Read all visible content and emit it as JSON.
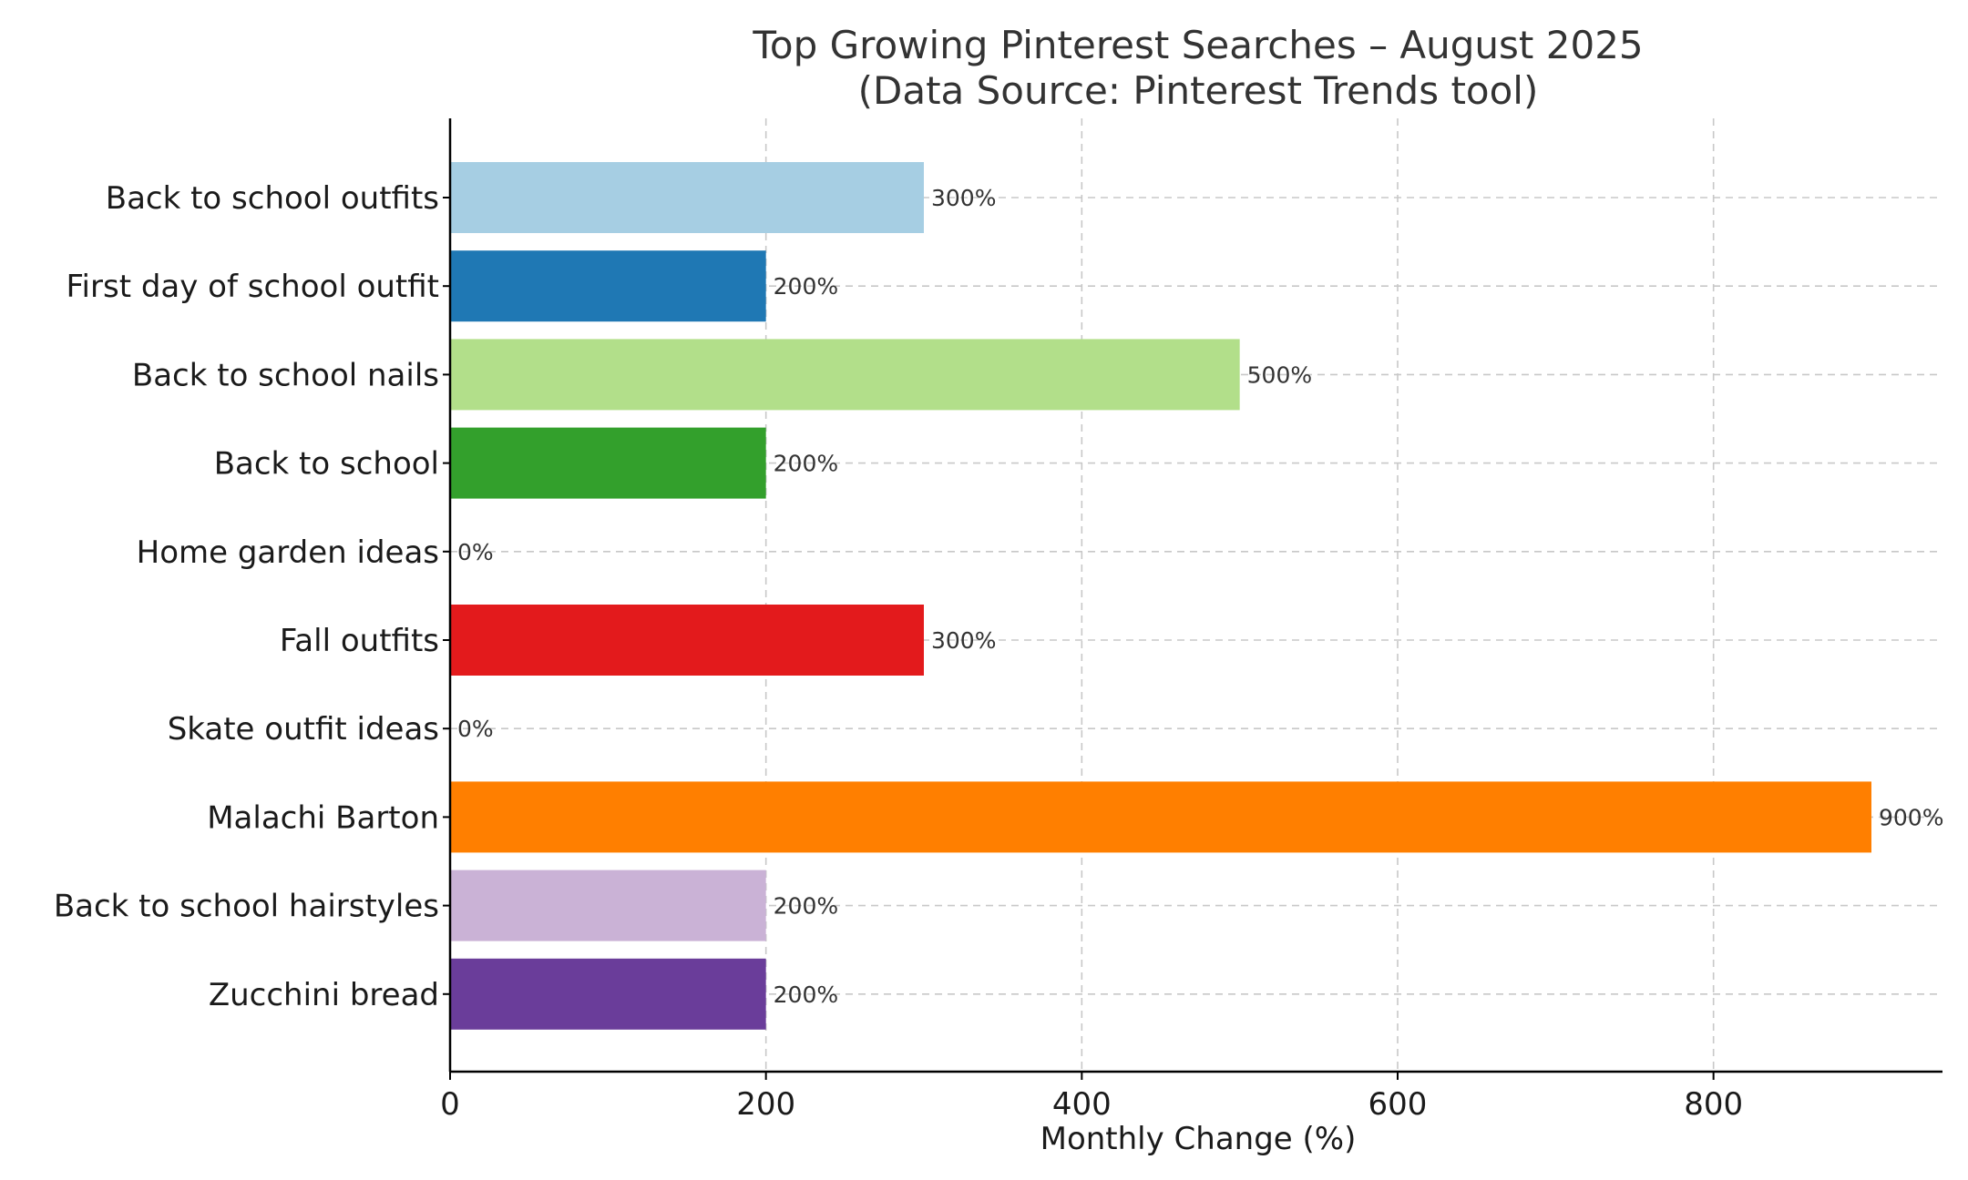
{
  "chart_data": {
    "type": "bar",
    "orientation": "horizontal",
    "title": "Top Growing Pinterest Searches – August 2025",
    "subtitle": "(Data Source: Pinterest Trends tool)",
    "xlabel": "Monthly Change (%)",
    "ylabel": "",
    "xlim": [
      0,
      945
    ],
    "xticks": [
      0,
      200,
      400,
      600,
      800
    ],
    "grid": true,
    "legend": "none",
    "categories": [
      "Back to school outfits",
      "First day of school outfit",
      "Back to school nails",
      "Back to school",
      "Home garden ideas",
      "Fall outfits",
      "Skate outfit ideas",
      "Malachi Barton",
      "Back to school hairstyles",
      "Zucchini bread"
    ],
    "values": [
      300,
      200,
      500,
      200,
      0,
      300,
      0,
      900,
      200,
      200
    ],
    "data_labels": [
      "300%",
      "200%",
      "500%",
      "200%",
      "0%",
      "300%",
      "0%",
      "900%",
      "200%",
      "200%"
    ],
    "colors": [
      "#a6cee3",
      "#1f78b4",
      "#b2df8a",
      "#33a02c",
      "#fb9a99",
      "#e31a1c",
      "#fdbf6f",
      "#ff7f00",
      "#cab2d6",
      "#6a3d9a"
    ]
  }
}
